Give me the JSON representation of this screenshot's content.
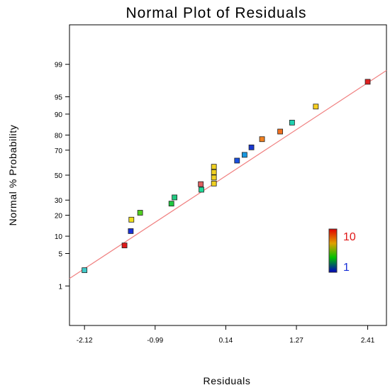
{
  "chart_data": {
    "type": "scatter",
    "title": "Normal Plot of Residuals",
    "xlabel": "Residuals",
    "ylabel": "Normal % Probability",
    "x_ticks": [
      "-2.12",
      "-0.99",
      "0.14",
      "1.27",
      "2.41"
    ],
    "y_ticks": [
      "1",
      "5",
      "10",
      "20",
      "30",
      "50",
      "70",
      "80",
      "90",
      "95",
      "99"
    ],
    "xlim": [
      -2.36,
      2.71
    ],
    "ylim_probability": [
      0.08,
      99.92
    ],
    "y_scale": "normal-probability",
    "grid": false,
    "fit_line": {
      "x": [
        -2.36,
        2.71
      ],
      "y": [
        1.5,
        98.6
      ],
      "color": "#f08080"
    },
    "points": [
      {
        "x": -2.12,
        "y": 2.3,
        "color": "#40c8c8"
      },
      {
        "x": -1.48,
        "y": 7.0,
        "color": "#e01818"
      },
      {
        "x": -1.38,
        "y": 12.0,
        "color": "#1830d8"
      },
      {
        "x": -1.37,
        "y": 17.5,
        "color": "#f0e020"
      },
      {
        "x": -1.23,
        "y": 21.5,
        "color": "#50d020"
      },
      {
        "x": -0.73,
        "y": 27.5,
        "color": "#20c840"
      },
      {
        "x": -0.68,
        "y": 32.0,
        "color": "#20c880"
      },
      {
        "x": -0.25,
        "y": 38.0,
        "color": "#20d898"
      },
      {
        "x": -0.26,
        "y": 42.5,
        "color": "#e06060"
      },
      {
        "x": -0.05,
        "y": 43.0,
        "color": "#f0d020"
      },
      {
        "x": -0.05,
        "y": 48.0,
        "color": "#f0d020"
      },
      {
        "x": -0.05,
        "y": 52.5,
        "color": "#f0d020"
      },
      {
        "x": -0.05,
        "y": 57.0,
        "color": "#f0d020"
      },
      {
        "x": 0.32,
        "y": 62.0,
        "color": "#1850e0"
      },
      {
        "x": 0.44,
        "y": 66.5,
        "color": "#1898e0"
      },
      {
        "x": 0.55,
        "y": 72.0,
        "color": "#1838d0"
      },
      {
        "x": 0.72,
        "y": 77.5,
        "color": "#f08020"
      },
      {
        "x": 1.01,
        "y": 82.0,
        "color": "#f07020"
      },
      {
        "x": 1.2,
        "y": 86.5,
        "color": "#20d0b0"
      },
      {
        "x": 1.58,
        "y": 92.5,
        "color": "#f8d020"
      },
      {
        "x": 2.41,
        "y": 97.5,
        "color": "#e02020"
      }
    ],
    "color_legend": {
      "max_label": "10",
      "min_label": "1",
      "max_color": "#e01818",
      "min_color": "#1830d8",
      "gradient": [
        "#e00000",
        "#e0a000",
        "#00c000",
        "#0000c0"
      ],
      "placement": "right"
    }
  }
}
